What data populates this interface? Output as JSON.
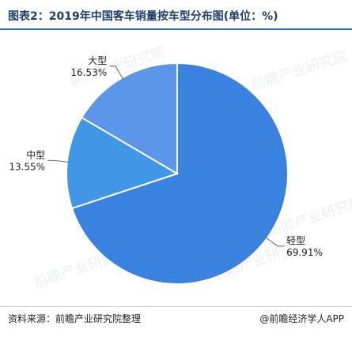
{
  "title": "图表2：2019年中国客车销量按车型分布图(单位：%)",
  "footer": {
    "source": "资料来源：前瞻产业研究院整理",
    "credit": "@前瞻经济学人APP"
  },
  "watermark": {
    "text": "前瞻产业研究院"
  },
  "chart_data": {
    "type": "pie",
    "slices": [
      {
        "name": "轻型",
        "value": 69.91,
        "label": "69.91%",
        "color": "#3a82e0"
      },
      {
        "name": "中型",
        "value": 13.55,
        "label": "13.55%",
        "color": "#3f97e6"
      },
      {
        "name": "大型",
        "value": 16.53,
        "label": "16.53%",
        "color": "#5b96e8"
      }
    ],
    "start_angle_deg": 0,
    "direction": "clockwise",
    "edge_color": "#ffffff",
    "label_color": "#222222"
  }
}
